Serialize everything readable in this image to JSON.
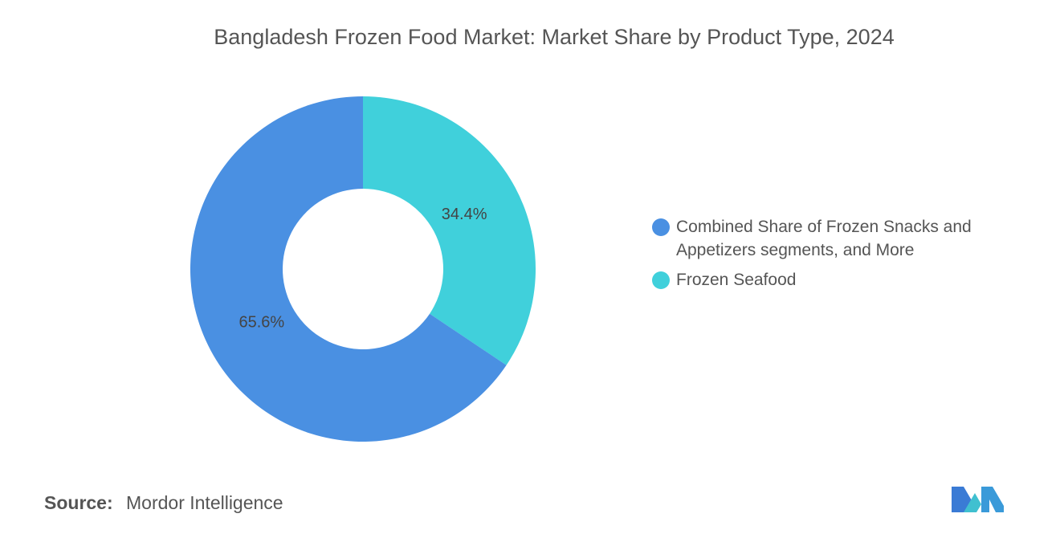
{
  "chart_data": {
    "type": "pie",
    "donut": true,
    "title": "Bangladesh Frozen Food Market: Market Share by Product Type, 2024",
    "categories": [
      "Combined Share of Frozen Snacks and Appetizers segments, and More",
      "Frozen Seafood"
    ],
    "values": [
      65.6,
      34.4
    ],
    "value_labels": [
      "65.6%",
      "34.4%"
    ],
    "colors": [
      "#4a90e2",
      "#40d0db"
    ],
    "source_label": "Source:",
    "source": "Mordor Intelligence"
  }
}
